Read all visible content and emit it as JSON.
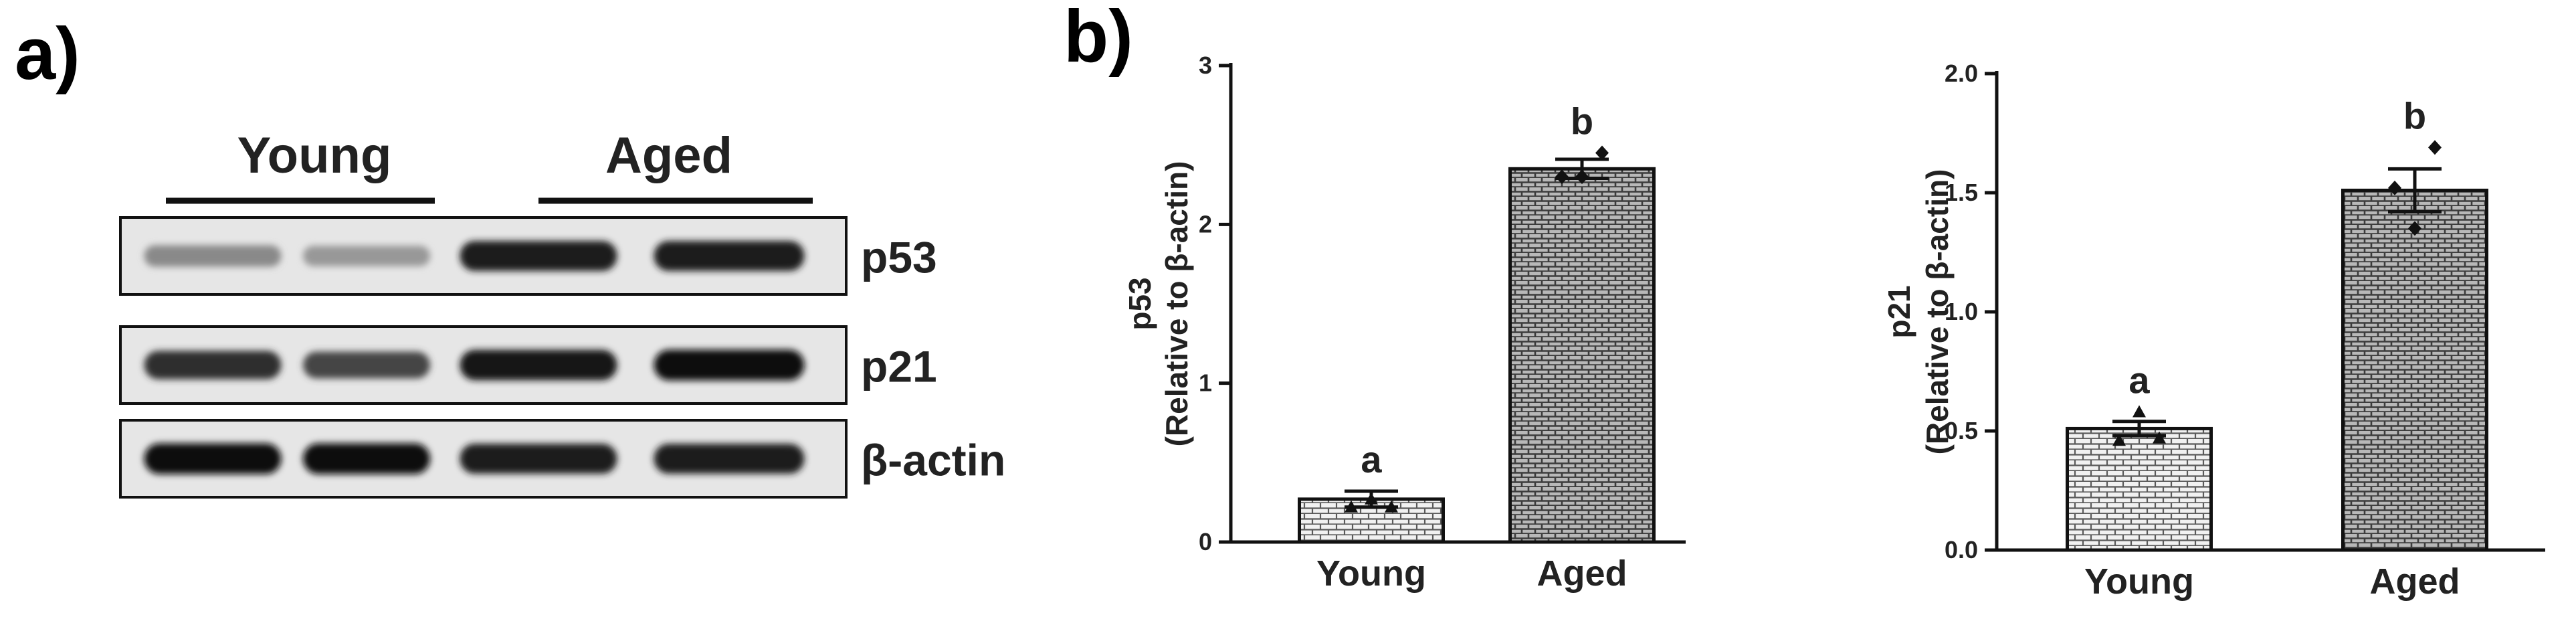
{
  "panel_a": {
    "label": "a)",
    "groups": [
      "Young",
      "Aged"
    ],
    "blots": [
      {
        "label": "p53",
        "lanes": [
          0.42,
          0.35,
          0.95,
          0.95
        ]
      },
      {
        "label": "p21",
        "lanes": [
          0.85,
          0.75,
          0.98,
          1.0
        ]
      },
      {
        "label": "β-actin",
        "lanes": [
          1.0,
          1.0,
          0.95,
          0.95
        ]
      }
    ]
  },
  "panel_b": {
    "label": "b)"
  },
  "chart_data": [
    {
      "type": "bar",
      "categories": [
        "Young",
        "Aged"
      ],
      "values": [
        0.27,
        2.35
      ],
      "errors": [
        0.05,
        0.06
      ],
      "points": [
        [
          0.22,
          0.27,
          0.22
        ],
        [
          2.3,
          2.3,
          2.45
        ]
      ],
      "significance": [
        "a",
        "b"
      ],
      "ylabel": "p53",
      "ylabel2": "(Relative to β-actin)",
      "ylim": [
        0,
        3
      ],
      "yticks": [
        "0",
        "1",
        "2",
        "3"
      ],
      "ytick_values": [
        0,
        1,
        2,
        3
      ]
    },
    {
      "type": "bar",
      "categories": [
        "Young",
        "Aged"
      ],
      "values": [
        0.51,
        1.51
      ],
      "errors": [
        0.03,
        0.09
      ],
      "points": [
        [
          0.46,
          0.58,
          0.47
        ],
        [
          1.52,
          1.35,
          1.69
        ]
      ],
      "significance": [
        "a",
        "b"
      ],
      "ylabel": "p21",
      "ylabel2": "(Relative to β-actin)",
      "ylim": [
        0,
        2.0
      ],
      "yticks": [
        "0.0",
        "0.5",
        "1.0",
        "1.5",
        "2.0"
      ],
      "ytick_values": [
        0,
        0.5,
        1.0,
        1.5,
        2.0
      ]
    }
  ]
}
